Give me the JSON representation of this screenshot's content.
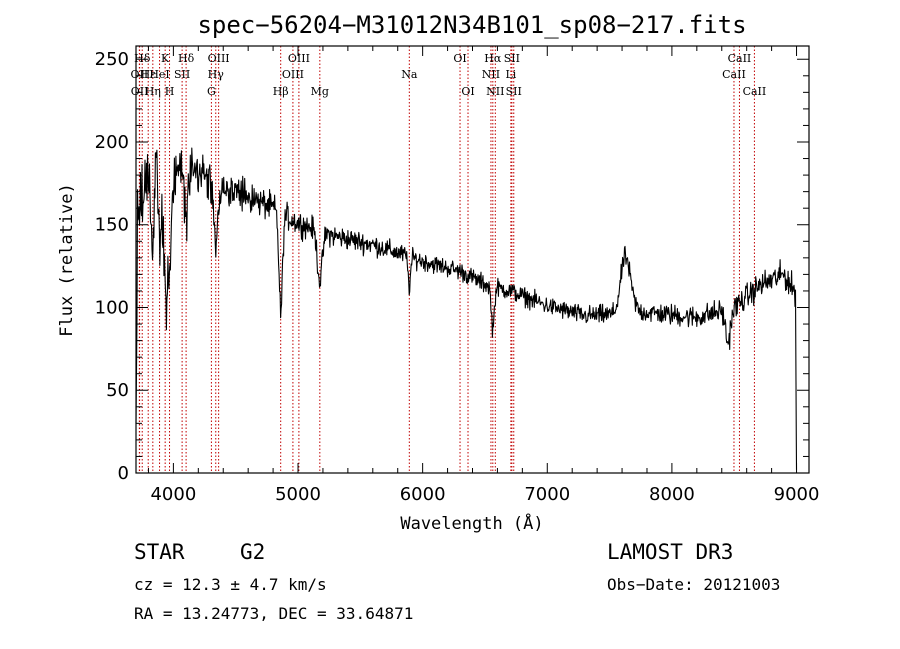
{
  "chart_data": {
    "type": "line",
    "title": "spec−56204−M31012N34B101_sp08−217.fits",
    "xlabel": "Wavelength (Å)",
    "ylabel": "Flux (relative)",
    "xlim": [
      3700,
      9100
    ],
    "ylim": [
      0,
      258
    ],
    "xticks": [
      {
        "value": 4000,
        "label": "4000"
      },
      {
        "value": 5000,
        "label": "5000"
      },
      {
        "value": 6000,
        "label": "6000"
      },
      {
        "value": 7000,
        "label": "7000"
      },
      {
        "value": 8000,
        "label": "8000"
      },
      {
        "value": 9000,
        "label": "9000"
      }
    ],
    "yticks": [
      {
        "value": 0,
        "label": "0"
      },
      {
        "value": 50,
        "label": "50"
      },
      {
        "value": 100,
        "label": "100"
      },
      {
        "value": 150,
        "label": "150"
      },
      {
        "value": 200,
        "label": "200"
      },
      {
        "value": 250,
        "label": "250"
      }
    ],
    "x_minor_step": 200,
    "y_minor_step": 10,
    "spectral_lines": [
      {
        "label": "Hδ",
        "wavelength": 3750,
        "row": 1
      },
      {
        "label": "OII",
        "wavelength": 3727,
        "row": 2
      },
      {
        "label": "OII",
        "wavelength": 3729,
        "row": 3
      },
      {
        "label": "Hε",
        "wavelength": 3798,
        "row": 2
      },
      {
        "label": "Hη",
        "wavelength": 3835,
        "row": 3
      },
      {
        "label": "K",
        "wavelength": 3934,
        "row": 1
      },
      {
        "label": "HeI",
        "wavelength": 3889,
        "row": 2
      },
      {
        "label": "H",
        "wavelength": 3969,
        "row": 3
      },
      {
        "label": "Hδ",
        "wavelength": 4102,
        "row": 1
      },
      {
        "label": "SII",
        "wavelength": 4070,
        "row": 2
      },
      {
        "label": "OIII",
        "wavelength": 4363,
        "row": 1
      },
      {
        "label": "Hγ",
        "wavelength": 4340,
        "row": 2
      },
      {
        "label": "G",
        "wavelength": 4305,
        "row": 3
      },
      {
        "label": "Hβ",
        "wavelength": 4861,
        "row": 3
      },
      {
        "label": "OIII",
        "wavelength": 5007,
        "row": 1
      },
      {
        "label": "OIII",
        "wavelength": 4959,
        "row": 2
      },
      {
        "label": "Mg",
        "wavelength": 5175,
        "row": 3
      },
      {
        "label": "Na",
        "wavelength": 5893,
        "row": 2
      },
      {
        "label": "OI",
        "wavelength": 6300,
        "row": 1
      },
      {
        "label": "OI",
        "wavelength": 6364,
        "row": 3
      },
      {
        "label": "Hα",
        "wavelength": 6563,
        "row": 1
      },
      {
        "label": "NII",
        "wavelength": 6548,
        "row": 2
      },
      {
        "label": "NII",
        "wavelength": 6583,
        "row": 3
      },
      {
        "label": "SII",
        "wavelength": 6716,
        "row": 1
      },
      {
        "label": "Li",
        "wavelength": 6708,
        "row": 2
      },
      {
        "label": "SII",
        "wavelength": 6731,
        "row": 3
      },
      {
        "label": "CaII",
        "wavelength": 8542,
        "row": 1
      },
      {
        "label": "CaII",
        "wavelength": 8498,
        "row": 2
      },
      {
        "label": "CaII",
        "wavelength": 8662,
        "row": 3
      }
    ],
    "continuum_anchors": [
      [
        3700,
        150
      ],
      [
        3760,
        175
      ],
      [
        3850,
        180
      ],
      [
        3950,
        188
      ],
      [
        4100,
        185
      ],
      [
        4300,
        178
      ],
      [
        4500,
        170
      ],
      [
        4800,
        160
      ],
      [
        5000,
        151
      ],
      [
        5300,
        143
      ],
      [
        5600,
        138
      ],
      [
        6000,
        128
      ],
      [
        6300,
        122
      ],
      [
        6500,
        114
      ],
      [
        6700,
        110
      ],
      [
        7000,
        101
      ],
      [
        7300,
        95
      ],
      [
        7600,
        96
      ],
      [
        7800,
        97
      ],
      [
        8200,
        94
      ],
      [
        8500,
        100
      ],
      [
        8700,
        113
      ],
      [
        8900,
        120
      ],
      [
        8980,
        110
      ]
    ],
    "features": [
      {
        "center": 3969,
        "width": 18,
        "depth": -60
      },
      {
        "center": 3934,
        "width": 18,
        "depth": -70
      },
      {
        "center": 3835,
        "width": 10,
        "depth": -50
      },
      {
        "center": 3889,
        "width": 10,
        "depth": -45
      },
      {
        "center": 4102,
        "width": 15,
        "depth": -35
      },
      {
        "center": 4340,
        "width": 18,
        "depth": -35
      },
      {
        "center": 4861,
        "width": 14,
        "depth": -60
      },
      {
        "center": 5175,
        "width": 20,
        "depth": -30
      },
      {
        "center": 5893,
        "width": 10,
        "depth": -18
      },
      {
        "center": 6563,
        "width": 12,
        "depth": -25
      },
      {
        "center": 7620,
        "width": 35,
        "depth": 28
      },
      {
        "center": 7660,
        "width": 40,
        "depth": 10
      },
      {
        "center": 8450,
        "width": 20,
        "depth": -20
      }
    ],
    "noise_scale": [
      [
        3700,
        22
      ],
      [
        3900,
        22
      ],
      [
        4100,
        16
      ],
      [
        4400,
        12
      ],
      [
        5000,
        8
      ],
      [
        6000,
        6
      ],
      [
        7000,
        6
      ],
      [
        8000,
        7
      ],
      [
        9000,
        9
      ]
    ]
  },
  "info": {
    "object_class": "STAR",
    "subclass": "G2",
    "survey": "LAMOST DR3",
    "redshift": "cz = 12.3 ± 4.7 km/s",
    "obs_date": "Obs−Date: 20121003",
    "coords": "RA =  13.24773, DEC =  33.64871"
  }
}
